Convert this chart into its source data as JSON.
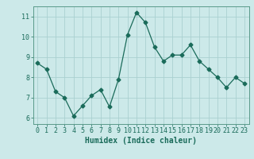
{
  "x": [
    0,
    1,
    2,
    3,
    4,
    5,
    6,
    7,
    8,
    9,
    10,
    11,
    12,
    13,
    14,
    15,
    16,
    17,
    18,
    19,
    20,
    21,
    22,
    23
  ],
  "y": [
    8.7,
    8.4,
    7.3,
    7.0,
    6.1,
    6.6,
    7.1,
    7.4,
    6.55,
    7.9,
    10.1,
    11.2,
    10.7,
    9.5,
    8.8,
    9.1,
    9.1,
    9.6,
    8.8,
    8.4,
    8.0,
    7.5,
    8.0,
    7.7
  ],
  "line_color": "#1a6b5a",
  "marker": "D",
  "marker_size": 2.5,
  "bg_color": "#cce9e9",
  "grid_color": "#aad0d0",
  "xlabel": "Humidex (Indice chaleur)",
  "xlim": [
    -0.5,
    23.5
  ],
  "ylim": [
    5.7,
    11.5
  ],
  "yticks": [
    6,
    7,
    8,
    9,
    10,
    11
  ],
  "xticks": [
    0,
    1,
    2,
    3,
    4,
    5,
    6,
    7,
    8,
    9,
    10,
    11,
    12,
    13,
    14,
    15,
    16,
    17,
    18,
    19,
    20,
    21,
    22,
    23
  ],
  "tick_color": "#1a6b5a",
  "label_fontsize": 6,
  "axis_fontsize": 7,
  "spine_color": "#5a9a8a"
}
